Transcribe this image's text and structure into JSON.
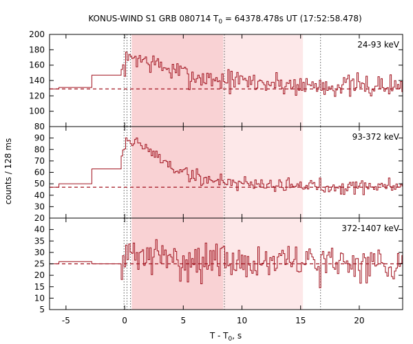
{
  "chart_data": {
    "type": "line",
    "title_prefix": "KONUS-WIND S1 GRB 080714 T",
    "title_sub": "0",
    "title_suffix": " = 64378.478s UT (17:52:58.478)",
    "xlabel_prefix": "T - T",
    "xlabel_sub": "0",
    "xlabel_suffix": ", s",
    "ylabel": "counts / 128 ms",
    "xlim": [
      -6.4,
      23.7
    ],
    "x_ticks": [
      -5,
      0,
      5,
      10,
      15,
      20
    ],
    "x_tick_labels": [
      "-5",
      "0",
      "5",
      "10",
      "15",
      "20"
    ],
    "vertical_lines": [
      -0.05,
      0.2,
      0.5,
      8.5,
      16.7
    ],
    "shaded_regions": [
      {
        "from": 0.6,
        "to": 8.4,
        "color": "#f9d2d4"
      },
      {
        "from": 8.4,
        "to": 15.2,
        "color": "#fde8e9"
      }
    ],
    "line_color": "#a0101c",
    "series": [
      {
        "name": "24-93 keV",
        "ylim": [
          80,
          200
        ],
        "y_ticks": [
          80,
          100,
          120,
          140,
          160,
          180,
          200
        ],
        "y_tick_labels": [
          "80",
          "100",
          "120",
          "140",
          "160",
          "180",
          "200"
        ],
        "background": 129,
        "step_pre": [
          [
            -6.4,
            129
          ],
          [
            -5.6,
            131
          ],
          [
            -2.8,
            147
          ]
        ],
        "burst_start": -0.3,
        "burst_profile": [
          [
            -0.3,
            148
          ],
          [
            0.0,
            160
          ],
          [
            0.7,
            172
          ],
          [
            1.5,
            167
          ],
          [
            2.5,
            162
          ],
          [
            4.0,
            153
          ],
          [
            6.0,
            145
          ],
          [
            8.0,
            141
          ],
          [
            11.0,
            138
          ],
          [
            15.0,
            134
          ],
          [
            23.7,
            132
          ]
        ],
        "noise_amp": 11,
        "seed": 7
      },
      {
        "name": "93-372 keV",
        "ylim": [
          20,
          100
        ],
        "y_ticks": [
          20,
          30,
          40,
          50,
          60,
          70,
          80,
          90
        ],
        "y_tick_labels": [
          "20",
          "30",
          "40",
          "50",
          "60",
          "70",
          "80",
          "90"
        ],
        "background": 47,
        "step_pre": [
          [
            -6.4,
            47
          ],
          [
            -5.6,
            50
          ],
          [
            -2.8,
            63
          ]
        ],
        "burst_start": -0.3,
        "burst_profile": [
          [
            -0.3,
            75
          ],
          [
            0.1,
            88
          ],
          [
            1.0,
            86
          ],
          [
            2.0,
            80
          ],
          [
            3.0,
            72
          ],
          [
            4.5,
            62
          ],
          [
            6.0,
            56
          ],
          [
            8.0,
            52
          ],
          [
            12.0,
            50
          ],
          [
            15.0,
            48
          ],
          [
            23.7,
            48
          ]
        ],
        "noise_amp": 5,
        "seed": 19
      },
      {
        "name": "372-1407 keV",
        "ylim": [
          5,
          45
        ],
        "y_ticks": [
          5,
          10,
          15,
          20,
          25,
          30,
          35,
          40
        ],
        "y_tick_labels": [
          "5",
          "10",
          "15",
          "20",
          "25",
          "30",
          "35",
          "40"
        ],
        "background": 25,
        "step_pre": [
          [
            -6.4,
            25
          ],
          [
            -5.6,
            26
          ],
          [
            -2.8,
            25
          ]
        ],
        "burst_start": -0.3,
        "burst_profile": [
          [
            -0.3,
            27
          ],
          [
            1.0,
            29
          ],
          [
            4.0,
            27
          ],
          [
            8.0,
            26
          ],
          [
            15.0,
            25.5
          ],
          [
            23.7,
            25
          ]
        ],
        "noise_amp": 6,
        "seed": 31
      }
    ]
  }
}
